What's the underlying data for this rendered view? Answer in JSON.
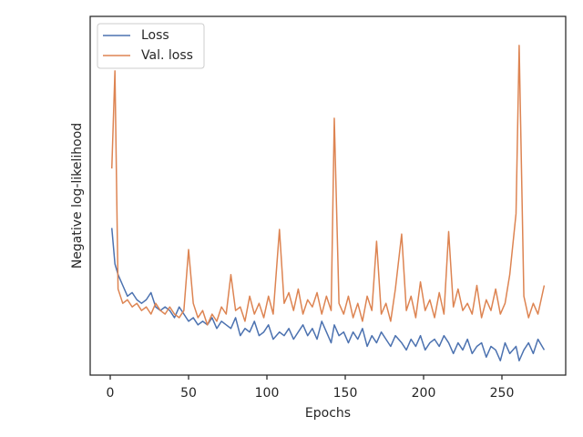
{
  "chart_data": {
    "type": "line",
    "xlabel": "Epochs",
    "ylabel": "Negative log-likelihood",
    "x": [
      1,
      3,
      5,
      8,
      11,
      14,
      17,
      20,
      23,
      26,
      29,
      32,
      35,
      38,
      41,
      44,
      47,
      50,
      53,
      56,
      59,
      62,
      65,
      68,
      71,
      74,
      77,
      80,
      83,
      86,
      89,
      92,
      95,
      98,
      101,
      104,
      108,
      111,
      114,
      117,
      120,
      123,
      126,
      129,
      132,
      135,
      138,
      141,
      143,
      146,
      149,
      152,
      155,
      158,
      161,
      164,
      167,
      170,
      173,
      176,
      179,
      182,
      186,
      189,
      192,
      195,
      198,
      201,
      204,
      207,
      210,
      213,
      216,
      219,
      222,
      225,
      228,
      231,
      234,
      237,
      240,
      243,
      246,
      249,
      252,
      255,
      259,
      261,
      264,
      267,
      270,
      273,
      277
    ],
    "series": [
      {
        "name": "Loss",
        "color": "#4c72b0",
        "values": [
          41,
          31,
          28,
          25,
          22,
          23,
          21,
          20,
          21,
          23,
          19,
          18,
          19,
          18,
          16,
          19,
          17,
          15,
          16,
          14,
          15,
          14,
          16,
          13,
          15,
          14,
          13,
          16,
          11,
          13,
          12,
          15,
          11,
          12,
          14,
          10,
          12,
          11,
          13,
          10,
          12,
          14,
          11,
          13,
          10,
          15,
          12,
          9,
          14,
          11,
          12,
          9,
          12,
          10,
          13,
          8,
          11,
          9,
          12,
          10,
          8,
          11,
          9,
          7,
          10,
          8,
          11,
          7,
          9,
          10,
          8,
          11,
          9,
          6,
          9,
          7,
          10,
          6,
          8,
          9,
          5,
          8,
          7,
          4,
          9,
          6,
          8,
          4,
          7,
          9,
          6,
          10,
          7
        ]
      },
      {
        "name": "Val. loss",
        "color": "#dd8452",
        "values": [
          57.6,
          84.8,
          24,
          20,
          21,
          19,
          20,
          18,
          19,
          17,
          20,
          18,
          17,
          19,
          17,
          16,
          18,
          35,
          20,
          16,
          18,
          14,
          17,
          15,
          19,
          17,
          28,
          18,
          19,
          15,
          22,
          17,
          20,
          16,
          22,
          17,
          40.6,
          20,
          23,
          18,
          24,
          17,
          21,
          19,
          23,
          17,
          22,
          18,
          71.6,
          20,
          17,
          22,
          16,
          20,
          15,
          22,
          18,
          37.3,
          17,
          20,
          15,
          24,
          39.3,
          18,
          22,
          16,
          26,
          18,
          21,
          16,
          23,
          17,
          40,
          19,
          24,
          18,
          20,
          17,
          25,
          16,
          21,
          18,
          24,
          17,
          20,
          28,
          45,
          91.9,
          22,
          16,
          20,
          17,
          25
        ]
      }
    ],
    "xlim": [
      -12.8,
      290.7
    ],
    "xticks": [
      0,
      50,
      100,
      150,
      200,
      250
    ],
    "ylim": [
      0,
      100
    ],
    "legend": "upper left"
  }
}
